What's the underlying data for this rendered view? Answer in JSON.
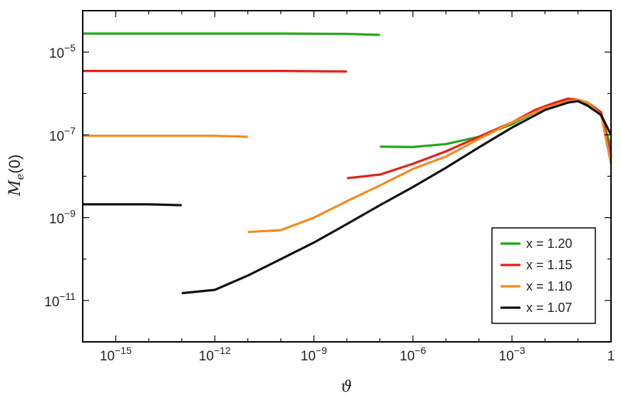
{
  "chart_data": {
    "type": "line",
    "xscale": "log",
    "yscale": "log",
    "xlabel": "ϑ",
    "ylabel": "M_e(0)",
    "xlim": [
      1e-16,
      1
    ],
    "ylim": [
      1e-12,
      0.0001
    ],
    "grid": false,
    "legend_position": "bottom-right",
    "x_ticks": [
      {
        "value": 1e-15,
        "base": "10",
        "exp": "−15"
      },
      {
        "value": 1e-12,
        "base": "10",
        "exp": "−12"
      },
      {
        "value": 1e-09,
        "base": "10",
        "exp": "−9"
      },
      {
        "value": 1e-06,
        "base": "10",
        "exp": "−6"
      },
      {
        "value": 0.001,
        "base": "10",
        "exp": "−3"
      },
      {
        "value": 1,
        "base": "1",
        "exp": ""
      }
    ],
    "y_ticks": [
      {
        "value": 1e-11,
        "base": "10",
        "exp": "−11"
      },
      {
        "value": 1e-09,
        "base": "10",
        "exp": "−9"
      },
      {
        "value": 1e-07,
        "base": "10",
        "exp": "−7"
      },
      {
        "value": 1e-05,
        "base": "10",
        "exp": "−5"
      }
    ],
    "series": [
      {
        "name": "x = 1.20",
        "color": "#22a91b",
        "segments": [
          [
            [
              1e-16,
              2.8e-05
            ],
            [
              1e-10,
              2.8e-05
            ],
            [
              1e-08,
              2.75e-05
            ],
            [
              1e-07,
              2.6e-05
            ]
          ],
          [
            [
              1e-07,
              5.2e-08
            ],
            [
              1e-06,
              5.1e-08
            ],
            [
              1e-05,
              6e-08
            ],
            [
              0.0001,
              9e-08
            ],
            [
              0.001,
              1.8e-07
            ],
            [
              0.005,
              3.5e-07
            ],
            [
              0.02,
              5.5e-07
            ],
            [
              0.05,
              6.5e-07
            ],
            [
              0.1,
              7e-07
            ],
            [
              0.2,
              5.5e-07
            ],
            [
              0.5,
              3e-07
            ],
            [
              1,
              5e-08
            ]
          ]
        ]
      },
      {
        "name": "x = 1.15",
        "color": "#e32119",
        "segments": [
          [
            [
              1e-16,
              3.5e-06
            ],
            [
              1e-10,
              3.5e-06
            ],
            [
              1e-08,
              3.4e-06
            ]
          ],
          [
            [
              1e-08,
              9e-09
            ],
            [
              1e-07,
              1.1e-08
            ],
            [
              1e-06,
              2e-08
            ],
            [
              1e-05,
              4e-08
            ],
            [
              0.0001,
              9e-08
            ],
            [
              0.001,
              2e-07
            ],
            [
              0.005,
              4e-07
            ],
            [
              0.02,
              6e-07
            ],
            [
              0.05,
              7.5e-07
            ],
            [
              0.1,
              7e-07
            ],
            [
              0.2,
              6e-07
            ],
            [
              0.5,
              3.5e-07
            ],
            [
              1,
              3e-08
            ]
          ]
        ]
      },
      {
        "name": "x = 1.10",
        "color": "#f38b1f",
        "segments": [
          [
            [
              1e-16,
              9.5e-08
            ],
            [
              1e-12,
              9.5e-08
            ],
            [
              1e-11,
              9e-08
            ]
          ],
          [
            [
              1e-11,
              4.5e-10
            ],
            [
              1e-10,
              5e-10
            ],
            [
              1e-09,
              1e-09
            ],
            [
              1e-08,
              2.5e-09
            ],
            [
              1e-07,
              6e-09
            ],
            [
              1e-06,
              1.5e-08
            ],
            [
              1e-05,
              3e-08
            ],
            [
              0.0001,
              8e-08
            ],
            [
              0.001,
              2e-07
            ],
            [
              0.01,
              4.5e-07
            ],
            [
              0.05,
              6.5e-07
            ],
            [
              0.1,
              7e-07
            ],
            [
              0.2,
              6e-07
            ],
            [
              0.5,
              3e-07
            ],
            [
              1,
              2e-08
            ]
          ]
        ]
      },
      {
        "name": "x = 1.07",
        "color": "#111111",
        "segments": [
          [
            [
              1e-16,
              2.1e-09
            ],
            [
              1e-14,
              2.1e-09
            ],
            [
              1e-13,
              2e-09
            ]
          ],
          [
            [
              1e-13,
              1.5e-11
            ],
            [
              1e-12,
              1.8e-11
            ],
            [
              1e-11,
              4e-11
            ],
            [
              1e-10,
              1e-10
            ],
            [
              1e-09,
              2.5e-10
            ],
            [
              1e-08,
              7e-10
            ],
            [
              1e-07,
              2e-09
            ],
            [
              1e-06,
              5.5e-09
            ],
            [
              1e-05,
              1.6e-08
            ],
            [
              0.0001,
              5e-08
            ],
            [
              0.001,
              1.5e-07
            ],
            [
              0.01,
              4e-07
            ],
            [
              0.05,
              6e-07
            ],
            [
              0.1,
              6.5e-07
            ],
            [
              0.2,
              5e-07
            ],
            [
              0.5,
              3e-07
            ],
            [
              1,
              1e-07
            ]
          ]
        ]
      }
    ]
  }
}
